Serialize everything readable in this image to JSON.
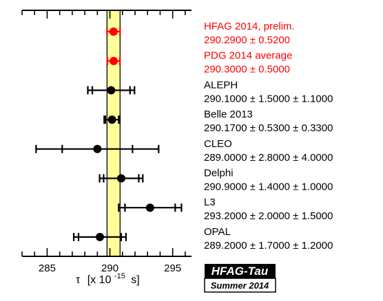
{
  "chart_data": {
    "type": "scatter",
    "xlabel_prefix": "τ",
    "xlabel_bracket": "[x 10",
    "xlabel_exp": "-15",
    "xlabel_unit": "s]",
    "xlim": [
      283,
      296.5
    ],
    "x_ticks": [
      "285",
      "290",
      "295"
    ],
    "band": {
      "center": 290.29,
      "halfwidth": 0.52,
      "color": "#ffff99"
    },
    "measurements": [
      {
        "name": "HFAG 2014, prelim.",
        "value_text": "290.2900 ± 0.5200",
        "value": 290.29,
        "stat": 0.52,
        "syst": 0,
        "color": "#ff0000"
      },
      {
        "name": "PDG 2014 average",
        "value_text": "290.3000 ± 0.5000",
        "value": 290.3,
        "stat": 0.5,
        "syst": 0,
        "color": "#ff0000"
      },
      {
        "name": "ALEPH",
        "value_text": "290.1000 ± 1.5000 ± 1.1000",
        "value": 290.1,
        "stat": 1.5,
        "syst": 1.1,
        "color": "#000000"
      },
      {
        "name": "Belle 2013",
        "value_text": "290.1700 ± 0.5300 ± 0.3300",
        "value": 290.17,
        "stat": 0.53,
        "syst": 0.33,
        "color": "#000000"
      },
      {
        "name": "CLEO",
        "value_text": "289.0000 ± 2.8000 ± 4.0000",
        "value": 289.0,
        "stat": 2.8,
        "syst": 4.0,
        "color": "#000000"
      },
      {
        "name": "Delphi",
        "value_text": "290.9000 ± 1.4000 ± 1.0000",
        "value": 290.9,
        "stat": 1.4,
        "syst": 1.0,
        "color": "#000000"
      },
      {
        "name": "L3",
        "value_text": "293.2000 ± 2.0000 ± 1.5000",
        "value": 293.2,
        "stat": 2.0,
        "syst": 1.5,
        "color": "#000000"
      },
      {
        "name": "OPAL",
        "value_text": "289.2000 ± 1.7000 ± 1.2000",
        "value": 289.2,
        "stat": 1.7,
        "syst": 1.2,
        "color": "#000000"
      }
    ]
  },
  "logo": {
    "title": "HFAG-Tau",
    "subtitle": "Summer 2014"
  }
}
